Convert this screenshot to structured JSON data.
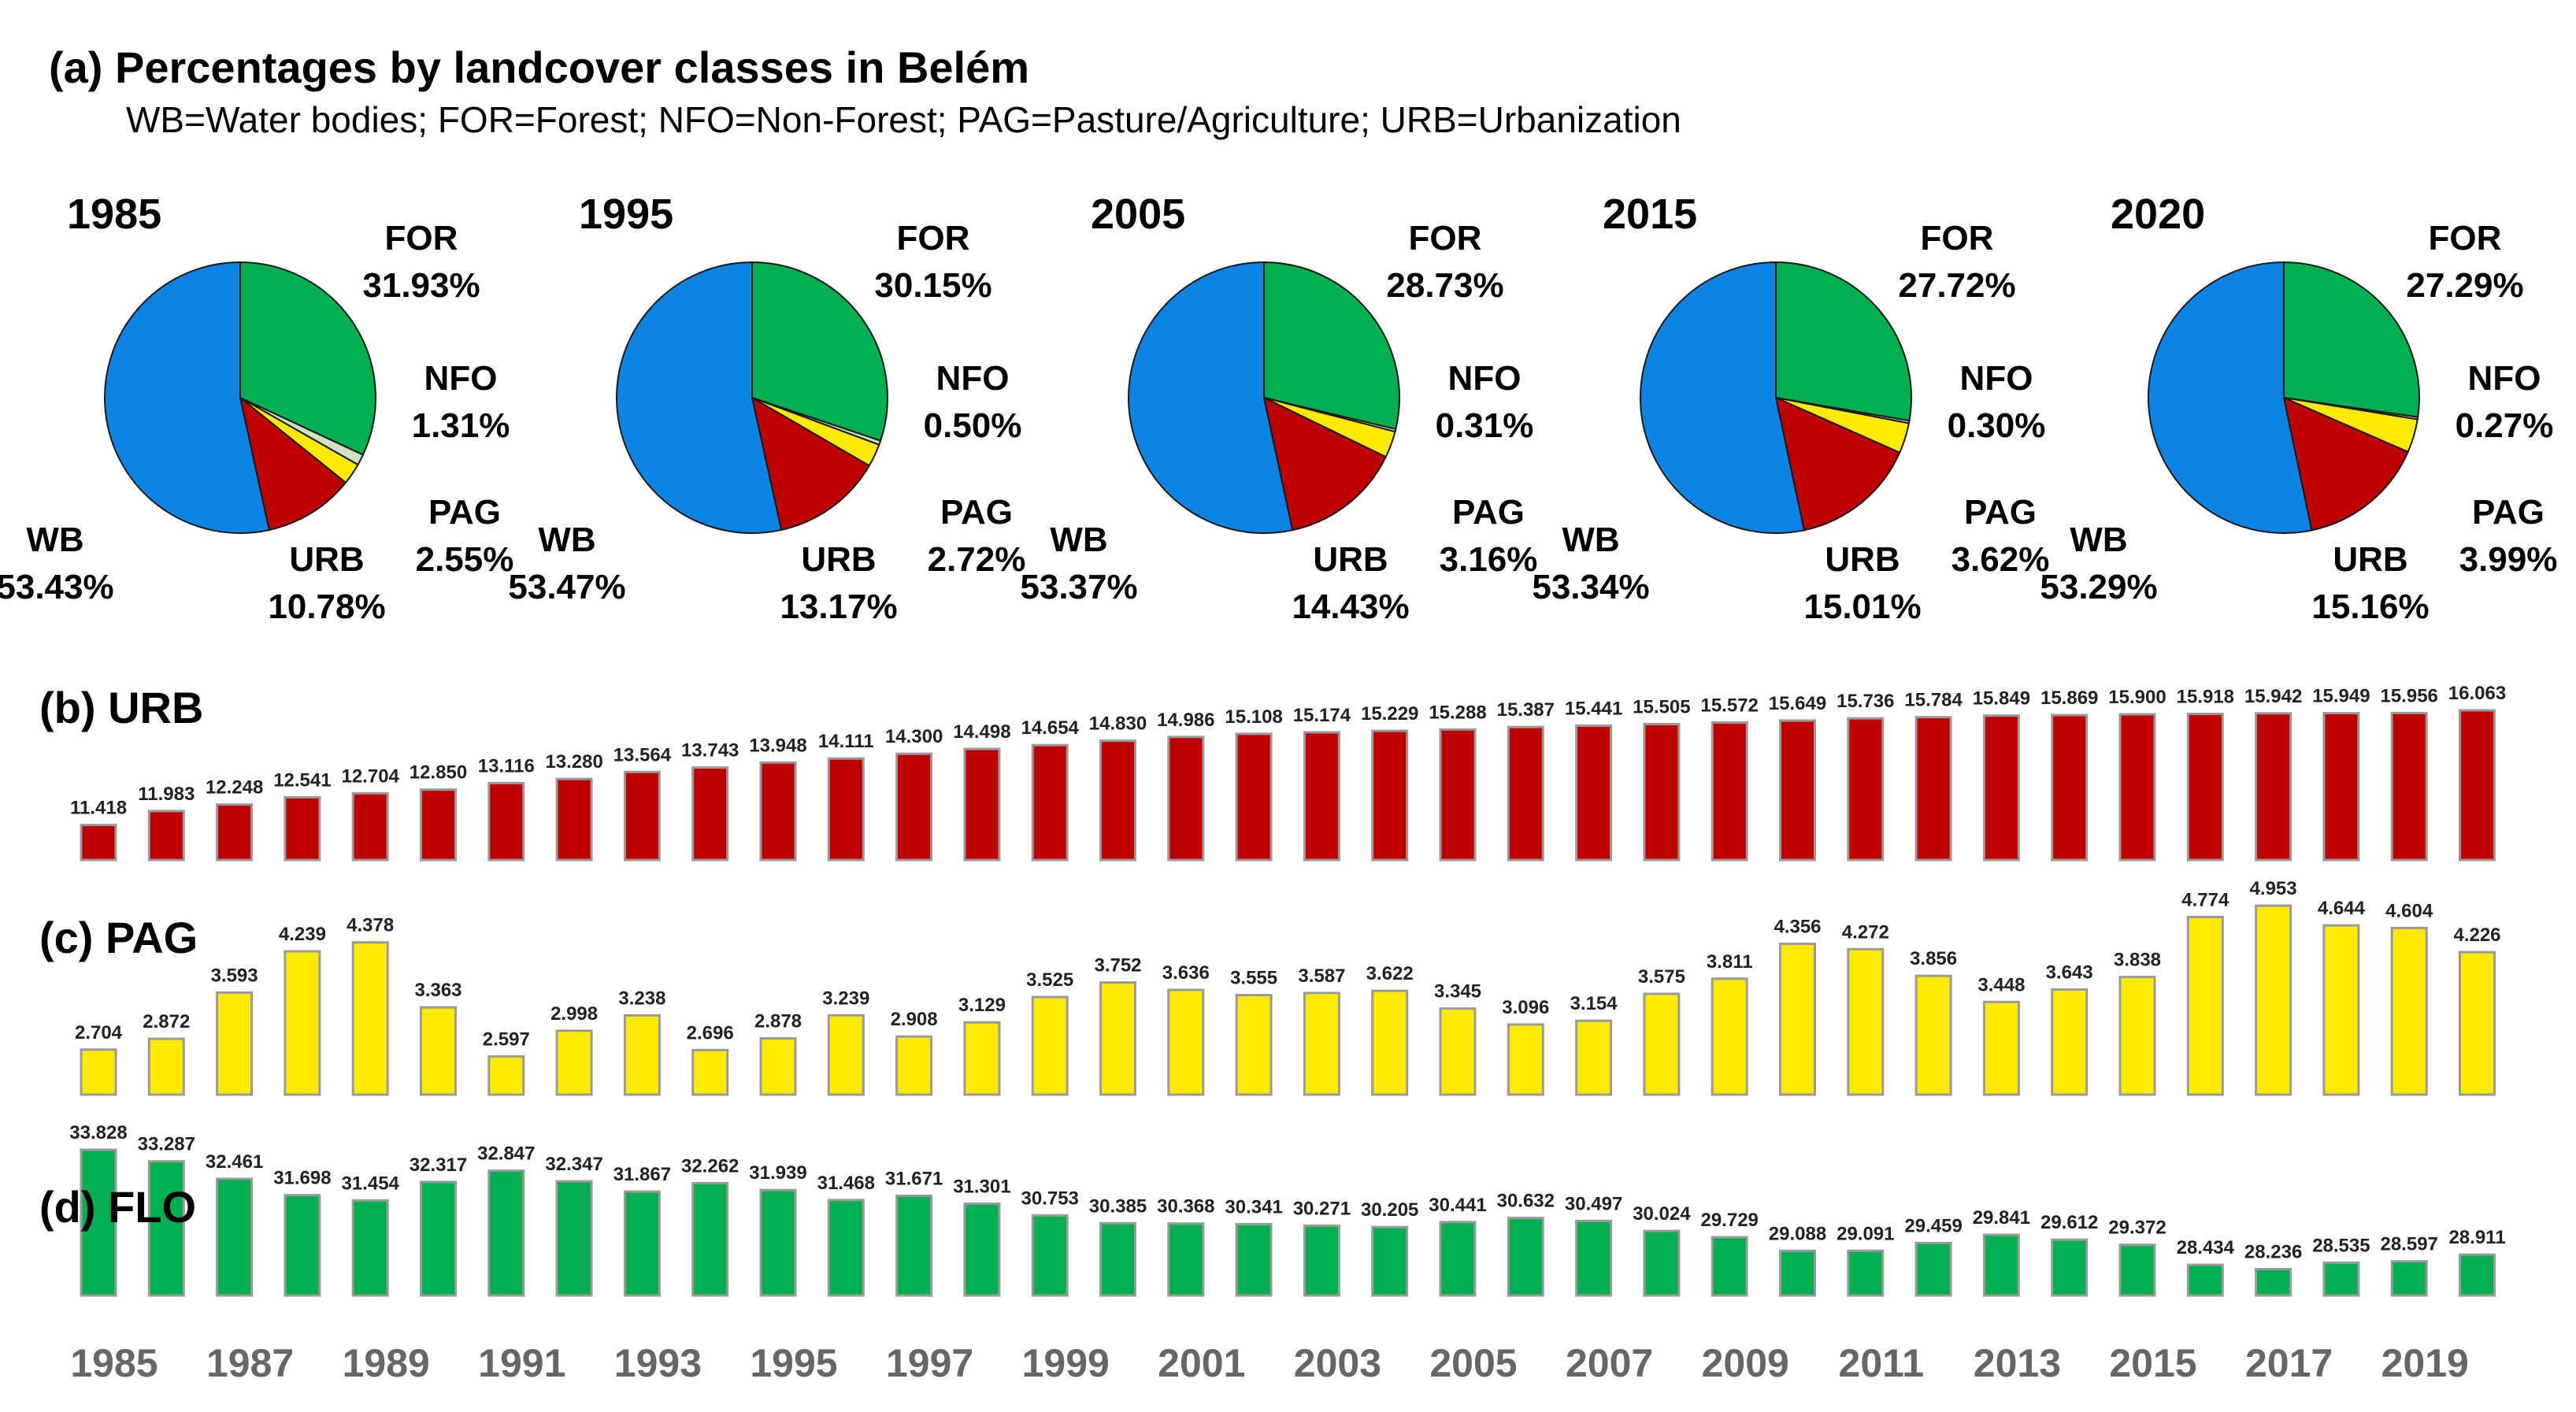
{
  "colors": {
    "WB": "#0b84e6",
    "FOR": "#00b050",
    "NFO": "#cfe2c2",
    "PAG": "#ffea00",
    "URB": "#c00000",
    "bar_stroke": "#9a9a9a",
    "axis_text": "#666666"
  },
  "header": {
    "title": "(a) Percentages by landcover classes in Belém",
    "subtitle": "WB=Water bodies; FOR=Forest; NFO=Non-Forest; PAG=Pasture/Agriculture; URB=Urbanization"
  },
  "chart_data": [
    {
      "type": "pie",
      "title": "1985",
      "labels": [
        "FOR",
        "NFO",
        "PAG",
        "URB",
        "WB"
      ],
      "values": [
        31.93,
        1.31,
        2.55,
        10.78,
        53.43
      ],
      "value_labels": [
        "31.93%",
        "1.31%",
        "2.55%",
        "10.78%",
        "53.43%"
      ]
    },
    {
      "type": "pie",
      "title": "1995",
      "labels": [
        "FOR",
        "NFO",
        "PAG",
        "URB",
        "WB"
      ],
      "values": [
        30.15,
        0.5,
        2.72,
        13.17,
        53.47
      ],
      "value_labels": [
        "30.15%",
        "0.50%",
        "2.72%",
        "13.17%",
        "53.47%"
      ]
    },
    {
      "type": "pie",
      "title": "2005",
      "labels": [
        "FOR",
        "NFO",
        "PAG",
        "URB",
        "WB"
      ],
      "values": [
        28.73,
        0.31,
        3.16,
        14.43,
        53.37
      ],
      "value_labels": [
        "28.73%",
        "0.31%",
        "3.16%",
        "14.43%",
        "53.37%"
      ]
    },
    {
      "type": "pie",
      "title": "2015",
      "labels": [
        "FOR",
        "NFO",
        "PAG",
        "URB",
        "WB"
      ],
      "values": [
        27.72,
        0.3,
        3.62,
        15.01,
        53.34
      ],
      "value_labels": [
        "27.72%",
        "0.30%",
        "3.62%",
        "15.01%",
        "53.34%"
      ]
    },
    {
      "type": "pie",
      "title": "2020",
      "labels": [
        "FOR",
        "NFO",
        "PAG",
        "URB",
        "WB"
      ],
      "values": [
        27.29,
        0.27,
        3.99,
        15.16,
        53.29
      ],
      "value_labels": [
        "27.29%",
        "0.27%",
        "3.99%",
        "15.16%",
        "53.29%"
      ]
    },
    {
      "type": "bar",
      "title": "(b) URB",
      "categories": [
        "1985",
        "1986",
        "1987",
        "1988",
        "1989",
        "1990",
        "1991",
        "1992",
        "1993",
        "1994",
        "1995",
        "1996",
        "1997",
        "1998",
        "1999",
        "2000",
        "2001",
        "2002",
        "2003",
        "2004",
        "2005",
        "2006",
        "2007",
        "2008",
        "2009",
        "2010",
        "2011",
        "2012",
        "2013",
        "2014",
        "2015",
        "2016",
        "2017",
        "2018",
        "2019",
        "2020"
      ],
      "values": [
        11.418,
        11.983,
        12.248,
        12.541,
        12.704,
        12.85,
        13.116,
        13.28,
        13.564,
        13.743,
        13.948,
        14.111,
        14.3,
        14.498,
        14.654,
        14.83,
        14.986,
        15.108,
        15.174,
        15.229,
        15.288,
        15.387,
        15.441,
        15.505,
        15.572,
        15.649,
        15.736,
        15.784,
        15.849,
        15.869,
        15.9,
        15.918,
        15.942,
        15.949,
        15.956,
        16.063
      ],
      "value_labels": [
        "11.418",
        "11.983",
        "12.248",
        "12.541",
        "12.704",
        "12.850",
        "13.116",
        "13.280",
        "13.564",
        "13.743",
        "13.948",
        "14.111",
        "14.300",
        "14.498",
        "14.654",
        "14.830",
        "14.986",
        "15.108",
        "15.174",
        "15.229",
        "15.288",
        "15.387",
        "15.441",
        "15.505",
        "15.572",
        "15.649",
        "15.736",
        "15.784",
        "15.849",
        "15.869",
        "15.900",
        "15.918",
        "15.942",
        "15.949",
        "15.956",
        "16.063"
      ],
      "ylim": [
        10,
        16.063
      ],
      "color_key": "URB"
    },
    {
      "type": "bar",
      "title": "(c) PAG",
      "categories": [
        "1985",
        "1986",
        "1987",
        "1988",
        "1989",
        "1990",
        "1991",
        "1992",
        "1993",
        "1994",
        "1995",
        "1996",
        "1997",
        "1998",
        "1999",
        "2000",
        "2001",
        "2002",
        "2003",
        "2004",
        "2005",
        "2006",
        "2007",
        "2008",
        "2009",
        "2010",
        "2011",
        "2012",
        "2013",
        "2014",
        "2015",
        "2016",
        "2017",
        "2018",
        "2019",
        "2020"
      ],
      "values": [
        2.704,
        2.872,
        3.593,
        4.239,
        4.378,
        3.363,
        2.597,
        2.998,
        3.238,
        2.696,
        2.878,
        3.239,
        2.908,
        3.129,
        3.525,
        3.752,
        3.636,
        3.555,
        3.587,
        3.622,
        3.345,
        3.096,
        3.154,
        3.575,
        3.811,
        4.356,
        4.272,
        3.856,
        3.448,
        3.643,
        3.838,
        4.774,
        4.953,
        4.644,
        4.604,
        4.226
      ],
      "value_labels": [
        "2.704",
        "2.872",
        "3.593",
        "4.239",
        "4.378",
        "3.363",
        "2.597",
        "2.998",
        "3.238",
        "2.696",
        "2.878",
        "3.239",
        "2.908",
        "3.129",
        "3.525",
        "3.752",
        "3.636",
        "3.555",
        "3.587",
        "3.622",
        "3.345",
        "3.096",
        "3.154",
        "3.575",
        "3.811",
        "4.356",
        "4.272",
        "3.856",
        "3.448",
        "3.643",
        "3.838",
        "4.774",
        "4.953",
        "4.644",
        "4.604",
        "4.226"
      ],
      "ylim": [
        2.0,
        4.953
      ],
      "color_key": "PAG"
    },
    {
      "type": "bar",
      "title": "(d) FLO",
      "categories": [
        "1985",
        "1986",
        "1987",
        "1988",
        "1989",
        "1990",
        "1991",
        "1992",
        "1993",
        "1994",
        "1995",
        "1996",
        "1997",
        "1998",
        "1999",
        "2000",
        "2001",
        "2002",
        "2003",
        "2004",
        "2005",
        "2006",
        "2007",
        "2008",
        "2009",
        "2010",
        "2011",
        "2012",
        "2013",
        "2014",
        "2015",
        "2016",
        "2017",
        "2018",
        "2019",
        "2020"
      ],
      "values": [
        33.828,
        33.287,
        32.461,
        31.698,
        31.454,
        32.317,
        32.847,
        32.347,
        31.867,
        32.262,
        31.939,
        31.468,
        31.671,
        31.301,
        30.753,
        30.385,
        30.368,
        30.341,
        30.271,
        30.205,
        30.441,
        30.632,
        30.497,
        30.024,
        29.729,
        29.088,
        29.091,
        29.459,
        29.841,
        29.612,
        29.372,
        28.434,
        28.236,
        28.535,
        28.597,
        28.911
      ],
      "value_labels": [
        "33.828",
        "33.287",
        "32.461",
        "31.698",
        "31.454",
        "32.317",
        "32.847",
        "32.347",
        "31.867",
        "32.262",
        "31.939",
        "31.468",
        "31.671",
        "31.301",
        "30.753",
        "30.385",
        "30.368",
        "30.341",
        "30.271",
        "30.205",
        "30.441",
        "30.632",
        "30.497",
        "30.024",
        "29.729",
        "29.088",
        "29.091",
        "29.459",
        "29.841",
        "29.612",
        "29.372",
        "28.434",
        "28.236",
        "28.535",
        "28.597",
        "28.911"
      ],
      "ylim": [
        27.0,
        33.828
      ],
      "color_key": "FOR"
    }
  ],
  "x_axis": {
    "tick_labels": [
      "1985",
      "1987",
      "1989",
      "1991",
      "1993",
      "1995",
      "1997",
      "1999",
      "2001",
      "2003",
      "2005",
      "2007",
      "2009",
      "2011",
      "2013",
      "2015",
      "2017",
      "2019"
    ]
  }
}
